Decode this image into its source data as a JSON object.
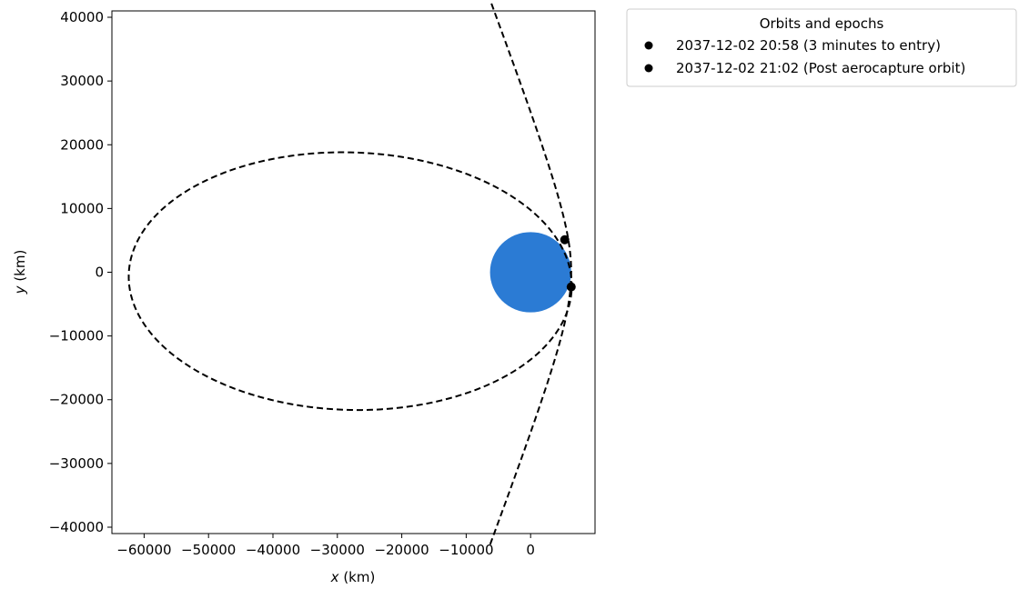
{
  "chart_data": {
    "type": "scatter",
    "title": "",
    "xlabel": {
      "var": "x",
      "unit": " (km)"
    },
    "ylabel": {
      "var": "y",
      "unit": " (km)"
    },
    "xlim": [
      -65000,
      10000
    ],
    "ylim": [
      -41000,
      41000
    ],
    "xticks": [
      -60000,
      -50000,
      -40000,
      -30000,
      -20000,
      -10000,
      0
    ],
    "xtick_labels": [
      "−60000",
      "−50000",
      "−40000",
      "−30000",
      "−20000",
      "−10000",
      "0"
    ],
    "yticks": [
      -40000,
      -30000,
      -20000,
      -10000,
      0,
      10000,
      20000,
      30000,
      40000
    ],
    "ytick_labels": [
      "−40000",
      "−30000",
      "−20000",
      "−10000",
      "0",
      "10000",
      "20000",
      "30000",
      "40000"
    ],
    "grid": false,
    "planet": {
      "center": [
        0,
        0
      ],
      "radius": 6300,
      "color": "#2b7bd4"
    },
    "orbits": [
      {
        "kind": "hyperbola",
        "style": "dashed",
        "color": "#000000",
        "vertex": [
          6300,
          0
        ],
        "axis_dir": [
          1,
          0
        ],
        "a": 3900,
        "b": 10400,
        "t_range": [
          -2.12,
          2.12
        ]
      },
      {
        "kind": "ellipse",
        "style": "dashed",
        "color": "#000000",
        "center": [
          -28000,
          -1400
        ],
        "a": 34400,
        "b": 20200,
        "angle_deg": -1.8
      }
    ],
    "points": [
      {
        "x": 5300,
        "y": 5100,
        "color": "#000000",
        "label": "2037-12-02 20:58 (3 minutes to entry)"
      },
      {
        "x": 6300,
        "y": -2300,
        "color": "#000000",
        "label": "2037-12-02 21:02 (Post aerocapture orbit)"
      }
    ],
    "legend": {
      "title": "Orbits and epochs",
      "placement": "outside-top-right",
      "entries": [
        "2037-12-02 20:58 (3 minutes to entry)",
        "2037-12-02 21:02 (Post aerocapture orbit)"
      ]
    }
  }
}
